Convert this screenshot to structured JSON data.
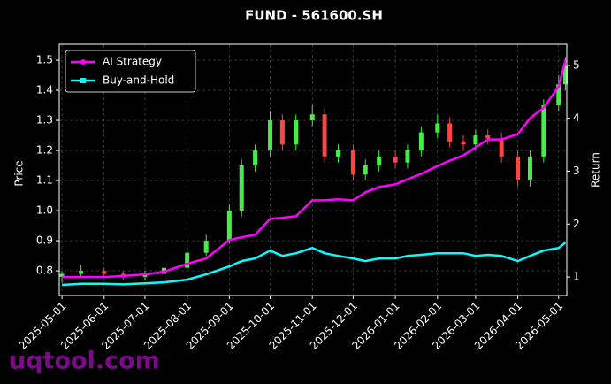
{
  "chart_data": {
    "type": "candlestick",
    "title": "FUND - 561600.SH",
    "ylabel": "Price",
    "y2label": "Return",
    "watermark": "uqtool.com",
    "x": [
      "2025-05-01",
      "2025-05-15",
      "2025-06-01",
      "2025-06-15",
      "2025-07-01",
      "2025-07-15",
      "2025-08-01",
      "2025-08-15",
      "2025-09-01",
      "2025-09-10",
      "2025-09-20",
      "2025-10-01",
      "2025-10-10",
      "2025-10-20",
      "2025-11-01",
      "2025-11-10",
      "2025-11-20",
      "2025-12-01",
      "2025-12-10",
      "2025-12-20",
      "2026-01-01",
      "2026-01-10",
      "2026-01-20",
      "2026-02-01",
      "2026-02-10",
      "2026-02-20",
      "2026-03-01",
      "2026-03-10",
      "2026-03-20",
      "2026-04-01",
      "2026-04-10",
      "2026-04-20",
      "2026-05-01",
      "2026-05-06"
    ],
    "open": [
      0.78,
      0.79,
      0.8,
      0.79,
      0.78,
      0.79,
      0.81,
      0.86,
      0.9,
      1.0,
      1.15,
      1.2,
      1.3,
      1.22,
      1.3,
      1.32,
      1.18,
      1.2,
      1.12,
      1.15,
      1.18,
      1.16,
      1.2,
      1.26,
      1.29,
      1.23,
      1.22,
      1.25,
      1.24,
      1.18,
      1.1,
      1.18,
      1.35,
      1.42
    ],
    "high": [
      0.8,
      0.82,
      0.81,
      0.8,
      0.8,
      0.83,
      0.88,
      0.92,
      1.02,
      1.17,
      1.22,
      1.33,
      1.32,
      1.32,
      1.35,
      1.34,
      1.22,
      1.22,
      1.17,
      1.2,
      1.2,
      1.22,
      1.28,
      1.32,
      1.31,
      1.25,
      1.27,
      1.27,
      1.26,
      1.2,
      1.2,
      1.37,
      1.45,
      1.51
    ],
    "low": [
      0.76,
      0.78,
      0.78,
      0.77,
      0.77,
      0.78,
      0.8,
      0.85,
      0.89,
      0.98,
      1.13,
      1.18,
      1.2,
      1.2,
      1.28,
      1.16,
      1.16,
      1.1,
      1.1,
      1.13,
      1.14,
      1.14,
      1.18,
      1.24,
      1.21,
      1.2,
      1.2,
      1.22,
      1.16,
      1.08,
      1.08,
      1.16,
      1.33,
      1.4
    ],
    "close": [
      0.79,
      0.8,
      0.79,
      0.78,
      0.79,
      0.81,
      0.86,
      0.9,
      1.0,
      1.15,
      1.2,
      1.3,
      1.22,
      1.3,
      1.32,
      1.18,
      1.2,
      1.12,
      1.15,
      1.18,
      1.16,
      1.2,
      1.26,
      1.29,
      1.23,
      1.22,
      1.25,
      1.24,
      1.18,
      1.1,
      1.18,
      1.35,
      1.42,
      1.48
    ],
    "up_color": "#44ee44",
    "down_color": "#ff4444",
    "series": [
      {
        "name": "AI Strategy",
        "color": "#ff00ff",
        "axis": "y2",
        "values": [
          1.0,
          1.0,
          1.0,
          1.02,
          1.05,
          1.1,
          1.25,
          1.35,
          1.7,
          1.75,
          1.8,
          2.1,
          2.12,
          2.15,
          2.45,
          2.45,
          2.47,
          2.45,
          2.6,
          2.7,
          2.75,
          2.85,
          2.95,
          3.1,
          3.2,
          3.3,
          3.45,
          3.6,
          3.6,
          3.7,
          4.0,
          4.2,
          4.6,
          5.1
        ]
      },
      {
        "name": "Buy-and-Hold",
        "color": "#00ffff",
        "axis": "y2",
        "values": [
          0.85,
          0.87,
          0.87,
          0.86,
          0.88,
          0.9,
          0.95,
          1.05,
          1.2,
          1.3,
          1.35,
          1.5,
          1.4,
          1.45,
          1.55,
          1.45,
          1.4,
          1.35,
          1.3,
          1.35,
          1.35,
          1.4,
          1.42,
          1.45,
          1.45,
          1.45,
          1.4,
          1.42,
          1.4,
          1.3,
          1.4,
          1.5,
          1.55,
          1.65
        ]
      }
    ],
    "xlim": [
      "2025-04-29",
      "2026-05-07"
    ],
    "xticks": [
      "2025-05-01",
      "2025-06-01",
      "2025-07-01",
      "2025-08-01",
      "2025-09-01",
      "2025-10-01",
      "2025-11-01",
      "2025-12-01",
      "2026-01-01",
      "2026-02-01",
      "2026-03-01",
      "2026-04-01",
      "2026-05-01"
    ],
    "ylim": [
      0.718,
      1.553
    ],
    "yticks": [
      0.8,
      0.9,
      {
        "value": 1,
        "label": "1.0"
      },
      1.1,
      1.2,
      1.3,
      1.4,
      1.5
    ],
    "y2lim": [
      0.65,
      5.4
    ],
    "y2ticks": [
      1,
      2,
      3,
      4,
      5
    ],
    "grid": true,
    "legend": "upper-left"
  }
}
